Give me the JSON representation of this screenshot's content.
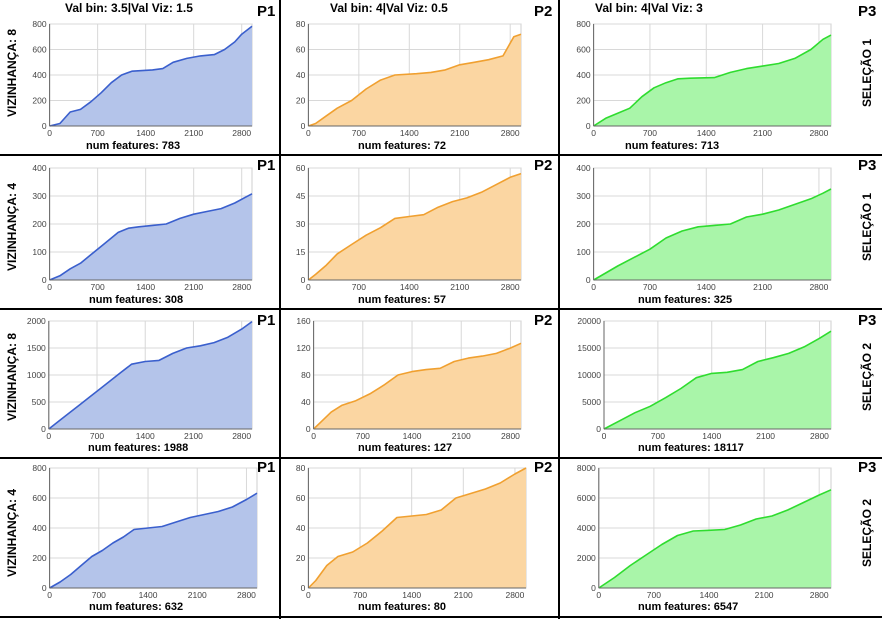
{
  "header": {
    "title_p1": "Val bin: 3.5|Val Viz: 1.5",
    "title_p2": "Val bin: 4|Val Viz: 0.5",
    "title_p3": "Val bin: 4|Val Viz: 3"
  },
  "row_labels": {
    "left": [
      "VIZINHANÇA: 8",
      "VIZINHANÇA: 4",
      "VIZINHANÇA: 8",
      "VIZINHANÇA: 4"
    ],
    "right": [
      "SELEÇÃO 1",
      "SELEÇÃO 1",
      "SELEÇÃO 2",
      "SELEÇÃO 2"
    ]
  },
  "colors": {
    "P1": {
      "line": "#3a5fcd",
      "fill": "#b4c4ea"
    },
    "P2": {
      "line": "#f0a030",
      "fill": "#fbd6a2"
    },
    "P3": {
      "line": "#2fdc2f",
      "fill": "#a9f5a9"
    }
  },
  "chart_data": [
    {
      "type": "area",
      "panel": "P1",
      "caption": "num features: 783",
      "ylim": [
        0,
        800
      ],
      "yticks": [
        0,
        200,
        400,
        600,
        800
      ],
      "xticks": [
        0,
        700,
        1400,
        2100,
        2800
      ],
      "xlim": [
        0,
        2950
      ],
      "grid": true,
      "x": [
        0,
        150,
        300,
        450,
        600,
        750,
        900,
        1050,
        1200,
        1500,
        1650,
        1800,
        2000,
        2200,
        2400,
        2550,
        2700,
        2800,
        2950
      ],
      "y": [
        0,
        20,
        110,
        130,
        190,
        260,
        340,
        400,
        430,
        440,
        450,
        500,
        530,
        550,
        560,
        600,
        660,
        720,
        783
      ]
    },
    {
      "type": "area",
      "panel": "P2",
      "caption": "num features: 72",
      "ylim": [
        0,
        80
      ],
      "yticks": [
        0,
        20,
        40,
        60,
        80
      ],
      "xticks": [
        0,
        700,
        1400,
        2100,
        2800
      ],
      "xlim": [
        0,
        2950
      ],
      "grid": true,
      "x": [
        0,
        100,
        250,
        400,
        600,
        800,
        1000,
        1200,
        1500,
        1700,
        1900,
        2100,
        2300,
        2500,
        2700,
        2850,
        2950
      ],
      "y": [
        0,
        2,
        8,
        14,
        20,
        29,
        36,
        40,
        41,
        42,
        44,
        48,
        50,
        52,
        55,
        70,
        72
      ]
    },
    {
      "type": "area",
      "panel": "P3",
      "caption": "num features: 713",
      "ylim": [
        0,
        800
      ],
      "yticks": [
        0,
        200,
        400,
        600,
        800
      ],
      "xticks": [
        0,
        700,
        1400,
        2100,
        2800
      ],
      "xlim": [
        0,
        2950
      ],
      "grid": true,
      "x": [
        0,
        150,
        300,
        450,
        600,
        750,
        900,
        1050,
        1200,
        1500,
        1700,
        1900,
        2100,
        2300,
        2500,
        2700,
        2850,
        2950
      ],
      "y": [
        0,
        60,
        100,
        140,
        230,
        300,
        340,
        370,
        375,
        380,
        420,
        450,
        470,
        490,
        530,
        600,
        680,
        713
      ]
    },
    {
      "type": "area",
      "panel": "P1",
      "caption": "num features: 308",
      "ylim": [
        0,
        400
      ],
      "yticks": [
        0,
        100,
        200,
        300,
        400
      ],
      "xticks": [
        0,
        700,
        1400,
        2100,
        2800
      ],
      "xlim": [
        0,
        2950
      ],
      "grid": true,
      "x": [
        0,
        150,
        300,
        450,
        600,
        800,
        1000,
        1150,
        1300,
        1500,
        1700,
        1900,
        2100,
        2300,
        2500,
        2700,
        2850,
        2950
      ],
      "y": [
        0,
        15,
        40,
        60,
        90,
        130,
        170,
        185,
        190,
        195,
        200,
        220,
        235,
        245,
        255,
        275,
        295,
        308
      ]
    },
    {
      "type": "area",
      "panel": "P2",
      "caption": "num features: 57",
      "ylim": [
        0,
        60
      ],
      "yticks": [
        0,
        15,
        30,
        45,
        60
      ],
      "xticks": [
        0,
        700,
        1400,
        2100,
        2800
      ],
      "xlim": [
        0,
        2950
      ],
      "grid": true,
      "x": [
        0,
        100,
        250,
        400,
        600,
        800,
        1000,
        1200,
        1400,
        1600,
        1800,
        2000,
        2200,
        2400,
        2600,
        2800,
        2950
      ],
      "y": [
        0,
        3,
        8,
        14,
        19,
        24,
        28,
        33,
        34,
        35,
        39,
        42,
        44,
        47,
        51,
        55,
        57
      ]
    },
    {
      "type": "area",
      "panel": "P3",
      "caption": "num features: 325",
      "ylim": [
        0,
        400
      ],
      "yticks": [
        0,
        100,
        200,
        300,
        400
      ],
      "xticks": [
        0,
        700,
        1400,
        2100,
        2800
      ],
      "xlim": [
        0,
        2950
      ],
      "grid": true,
      "x": [
        0,
        150,
        300,
        500,
        700,
        900,
        1100,
        1300,
        1500,
        1700,
        1900,
        2100,
        2300,
        2500,
        2700,
        2850,
        2950
      ],
      "y": [
        0,
        25,
        50,
        80,
        110,
        150,
        175,
        190,
        195,
        200,
        225,
        235,
        250,
        270,
        290,
        310,
        325
      ]
    },
    {
      "type": "area",
      "panel": "P1",
      "caption": "num features: 1988",
      "ylim": [
        0,
        2000
      ],
      "yticks": [
        0,
        500,
        1000,
        1500,
        2000
      ],
      "xticks": [
        0,
        700,
        1400,
        2100,
        2800
      ],
      "xlim": [
        0,
        2950
      ],
      "grid": true,
      "x": [
        0,
        150,
        300,
        450,
        600,
        750,
        900,
        1050,
        1200,
        1400,
        1600,
        1800,
        2000,
        2200,
        2400,
        2600,
        2800,
        2950
      ],
      "y": [
        0,
        150,
        300,
        450,
        600,
        750,
        900,
        1050,
        1200,
        1250,
        1270,
        1400,
        1500,
        1540,
        1600,
        1700,
        1850,
        1988
      ]
    },
    {
      "type": "area",
      "panel": "P2",
      "caption": "num features: 127",
      "ylim": [
        0,
        160
      ],
      "yticks": [
        0,
        40,
        80,
        120,
        160
      ],
      "xticks": [
        0,
        700,
        1400,
        2100,
        2800
      ],
      "xlim": [
        0,
        2950
      ],
      "grid": true,
      "x": [
        0,
        100,
        250,
        400,
        600,
        800,
        1000,
        1200,
        1400,
        1600,
        1800,
        2000,
        2200,
        2400,
        2600,
        2800,
        2950
      ],
      "y": [
        0,
        10,
        25,
        35,
        42,
        52,
        65,
        80,
        85,
        88,
        90,
        100,
        105,
        108,
        112,
        120,
        127
      ]
    },
    {
      "type": "area",
      "panel": "P3",
      "caption": "num features: 18117",
      "ylim": [
        0,
        20000
      ],
      "yticks": [
        0,
        5000,
        10000,
        15000,
        20000
      ],
      "xticks": [
        0,
        700,
        1400,
        2100,
        2800
      ],
      "xlim": [
        0,
        2950
      ],
      "grid": true,
      "x": [
        0,
        200,
        400,
        600,
        800,
        1000,
        1200,
        1400,
        1600,
        1800,
        2000,
        2200,
        2400,
        2600,
        2800,
        2950
      ],
      "y": [
        0,
        1500,
        3000,
        4200,
        5800,
        7500,
        9500,
        10300,
        10500,
        11000,
        12500,
        13200,
        14000,
        15200,
        16800,
        18117
      ]
    },
    {
      "type": "area",
      "panel": "P1",
      "caption": "num features: 632",
      "ylim": [
        0,
        800
      ],
      "yticks": [
        0,
        200,
        400,
        600,
        800
      ],
      "xticks": [
        0,
        700,
        1400,
        2100,
        2800
      ],
      "xlim": [
        0,
        2950
      ],
      "grid": true,
      "x": [
        0,
        150,
        300,
        450,
        600,
        750,
        900,
        1050,
        1200,
        1400,
        1600,
        1800,
        2000,
        2200,
        2400,
        2600,
        2800,
        2950
      ],
      "y": [
        0,
        40,
        90,
        150,
        210,
        250,
        300,
        340,
        390,
        400,
        410,
        440,
        470,
        490,
        510,
        540,
        590,
        632
      ]
    },
    {
      "type": "area",
      "panel": "P2",
      "caption": "num features: 80",
      "ylim": [
        0,
        80
      ],
      "yticks": [
        0,
        20,
        40,
        60,
        80
      ],
      "xticks": [
        0,
        700,
        1400,
        2100,
        2800
      ],
      "xlim": [
        0,
        2950
      ],
      "grid": true,
      "x": [
        0,
        100,
        250,
        400,
        600,
        800,
        1000,
        1200,
        1400,
        1600,
        1800,
        2000,
        2200,
        2400,
        2600,
        2800,
        2950
      ],
      "y": [
        0,
        5,
        15,
        21,
        24,
        30,
        38,
        47,
        48,
        49,
        52,
        60,
        63,
        66,
        70,
        76,
        80
      ]
    },
    {
      "type": "area",
      "panel": "P3",
      "caption": "num features: 6547",
      "ylim": [
        0,
        8000
      ],
      "yticks": [
        0,
        2000,
        4000,
        6000,
        8000
      ],
      "xticks": [
        0,
        700,
        1400,
        2100,
        2800
      ],
      "xlim": [
        0,
        2950
      ],
      "grid": true,
      "x": [
        0,
        200,
        400,
        600,
        800,
        1000,
        1200,
        1400,
        1600,
        1800,
        2000,
        2200,
        2400,
        2600,
        2800,
        2950
      ],
      "y": [
        0,
        700,
        1500,
        2200,
        2900,
        3500,
        3800,
        3850,
        3900,
        4200,
        4600,
        4800,
        5200,
        5700,
        6200,
        6547
      ]
    }
  ]
}
